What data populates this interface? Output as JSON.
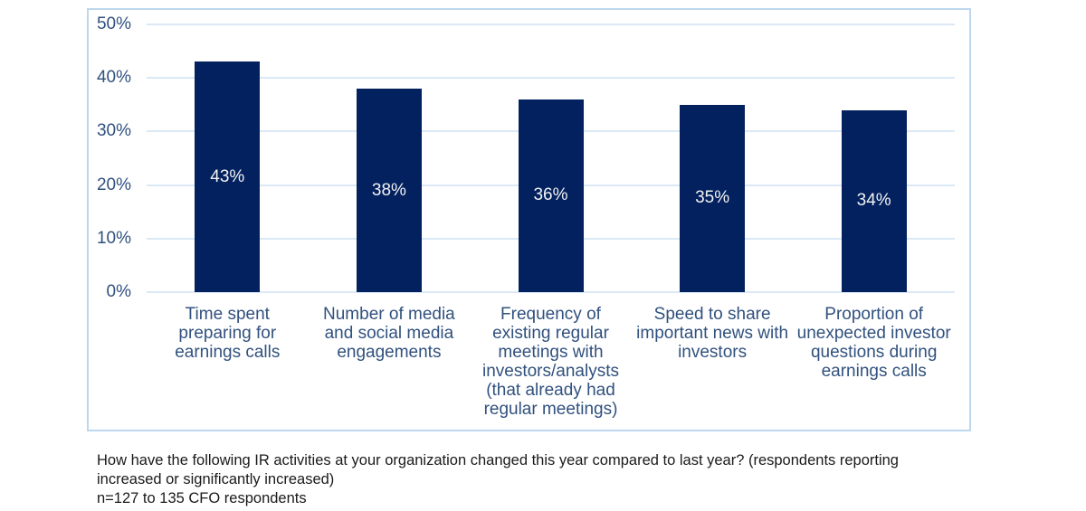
{
  "chart_data": {
    "type": "bar",
    "categories": [
      "Time spent\npreparing for\nearnings calls",
      "Number of media\nand social media\nengagements",
      "Frequency of\nexisting regular\nmeetings with\ninvestors/analysts\n(that already had\nregular meetings)",
      "Speed to share\nimportant news with\ninvestors",
      "Proportion of\nunexpected investor\nquestions during\nearnings calls"
    ],
    "values": [
      43,
      38,
      36,
      35,
      34
    ],
    "value_labels": [
      "43%",
      "38%",
      "36%",
      "35%",
      "34%"
    ],
    "yticks": [
      {
        "value": 50,
        "label": "50%"
      },
      {
        "value": 40,
        "label": "40%"
      },
      {
        "value": 30,
        "label": "30%"
      },
      {
        "value": 20,
        "label": "20%"
      },
      {
        "value": 10,
        "label": "10%"
      },
      {
        "value": 0,
        "label": "0%"
      }
    ],
    "ylim": [
      0,
      50
    ],
    "title": "",
    "xlabel": "",
    "ylabel": "",
    "grid": "horizontal",
    "legend": "none",
    "colors": {
      "bar_fill": "#03215f",
      "bar_value_text": "#f2f2f2",
      "axis_text": "#31517e",
      "gridline": "#dbe9f7",
      "panel_border": "#bdd7ee"
    }
  },
  "caption": {
    "line1": "How have the following IR activities at your organization changed this year compared to last year? (respondents reporting",
    "line2": "increased or significantly increased)",
    "line3": "n=127 to 135 CFO respondents"
  }
}
